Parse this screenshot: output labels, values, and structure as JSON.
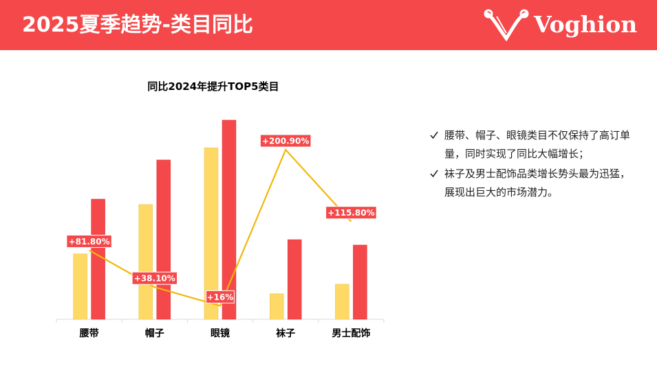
{
  "header": {
    "title": "2025夏季趋势-类目同比",
    "logo_text": "Voghion",
    "logo_icon": "voghion-v-logo-icon"
  },
  "bullets": [
    {
      "icon": "check-icon",
      "text": "腰带、帽子、眼镜类目不仅保持了高订单量，同时实现了同比大幅增长；"
    },
    {
      "icon": "check-icon",
      "text": "袜子及男士配饰品类增长势头最为迅猛，展现出巨大的市场潜力。"
    }
  ],
  "chart_data": {
    "type": "bar",
    "title": "同比2024年提升TOP5类目",
    "categories": [
      "腰带",
      "帽子",
      "眼镜",
      "袜子",
      "男士配饰"
    ],
    "series": [
      {
        "values": [
          97,
          170,
          254,
          38,
          52
        ],
        "color": "#ffd966"
      },
      {
        "values": [
          178,
          236,
          295,
          118,
          110
        ],
        "color": "#f4484a"
      }
    ],
    "line": {
      "values": [
        81.8,
        38.1,
        16,
        200.9,
        115.8
      ],
      "labels": [
        "+81.80%",
        "+38.10%",
        "+16%",
        "+200.90%",
        "+115.80%"
      ],
      "color": "#f2b705",
      "ylim": [
        0,
        240
      ]
    },
    "ylim": [
      0,
      300
    ],
    "legend": "none",
    "grid": false
  }
}
